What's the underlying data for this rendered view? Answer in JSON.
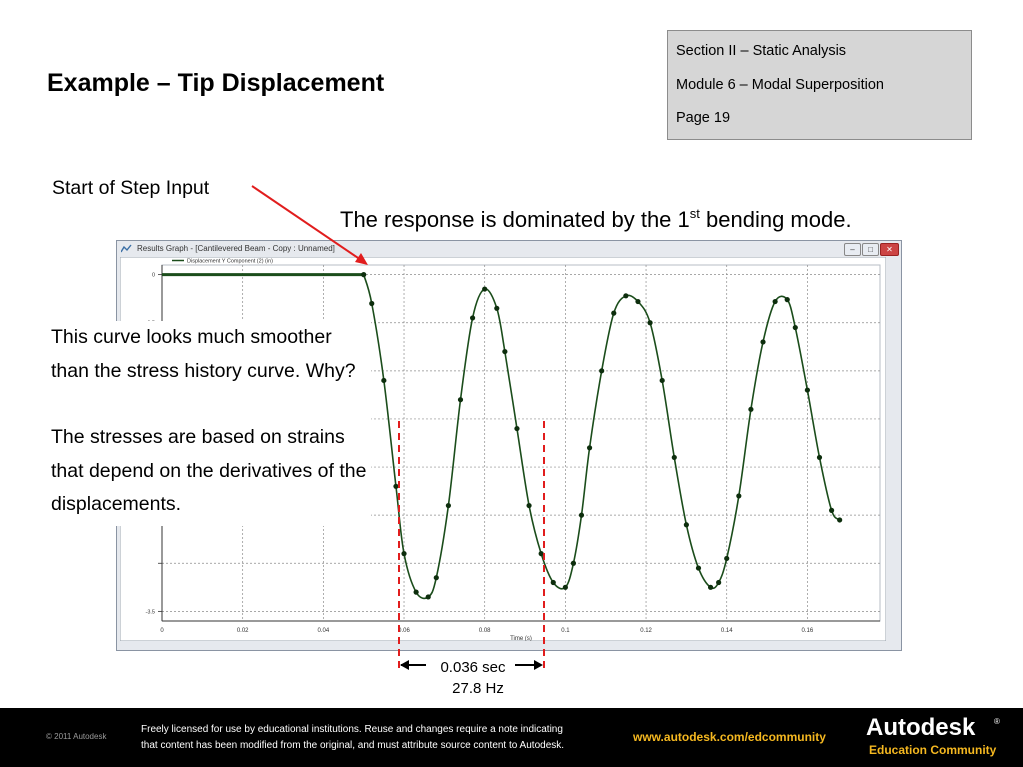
{
  "slide": {
    "title": "Example – Tip Displacement",
    "section": [
      "Section II – Static Analysis",
      "Module 6 – Modal Superposition",
      "Page 19"
    ],
    "start_label": "Start of Step Input",
    "response_prefix": "The response is dominated by the 1",
    "response_sup": "st",
    "response_suffix": " bending mode.",
    "side_text": {
      "p1": "This curve looks much smoother than the stress history curve. Why?",
      "p2": "The stresses are based on strains that depend on the derivatives of the displacements."
    },
    "period": "0.036 sec",
    "frequency": "27.8 Hz",
    "annotation_color": "#e11d1d"
  },
  "window": {
    "title": "Results Graph - [Cantilevered Beam - Copy : Unnamed]",
    "buttons": {
      "min": "–",
      "max": "□",
      "close": "✕"
    }
  },
  "chart_data": {
    "type": "scatter",
    "legend": [
      "Displacement Y Component (2) (in)"
    ],
    "xlabel": "Time (s)",
    "ylabel": "",
    "xlim": [
      0,
      0.178
    ],
    "ylim": [
      -3.6,
      0.1
    ],
    "x_ticks": [
      "0",
      "0.02",
      "0.04",
      "0.06",
      "0.08",
      "0.1",
      "0.12",
      "0.14",
      "0.16"
    ],
    "y_ticks_visible": [
      "0",
      "-0.5",
      "-3.5"
    ],
    "grid": true,
    "series": [
      {
        "name": "Displacement Y Component (2) (in)",
        "color": "#1b4d1b",
        "x": [
          0.05,
          0.052,
          0.055,
          0.058,
          0.06,
          0.063,
          0.066,
          0.068,
          0.071,
          0.074,
          0.077,
          0.08,
          0.083,
          0.085,
          0.088,
          0.091,
          0.094,
          0.097,
          0.1,
          0.102,
          0.104,
          0.106,
          0.109,
          0.112,
          0.115,
          0.118,
          0.121,
          0.124,
          0.127,
          0.13,
          0.133,
          0.136,
          0.138,
          0.14,
          0.143,
          0.146,
          0.149,
          0.152,
          0.155,
          0.157,
          0.16,
          0.163,
          0.166,
          0.168
        ],
        "y": [
          0.0,
          -0.3,
          -1.1,
          -2.2,
          -2.9,
          -3.3,
          -3.35,
          -3.15,
          -2.4,
          -1.3,
          -0.45,
          -0.15,
          -0.35,
          -0.8,
          -1.6,
          -2.4,
          -2.9,
          -3.2,
          -3.25,
          -3.0,
          -2.5,
          -1.8,
          -1.0,
          -0.4,
          -0.22,
          -0.28,
          -0.5,
          -1.1,
          -1.9,
          -2.6,
          -3.05,
          -3.25,
          -3.2,
          -2.95,
          -2.3,
          -1.4,
          -0.7,
          -0.28,
          -0.26,
          -0.55,
          -1.2,
          -1.9,
          -2.45,
          -2.55
        ]
      }
    ]
  },
  "footer": {
    "copyright": "© 2011 Autodesk",
    "license_line1": "Freely licensed for use by educational institutions. Reuse and changes require a note indicating",
    "license_line2": "that content has been modified from the original, and must attribute source content to Autodesk.",
    "url": "www.autodesk.com/edcommunity",
    "brand": "Autodesk",
    "brand_tm": "®",
    "edu": "Education Community"
  }
}
